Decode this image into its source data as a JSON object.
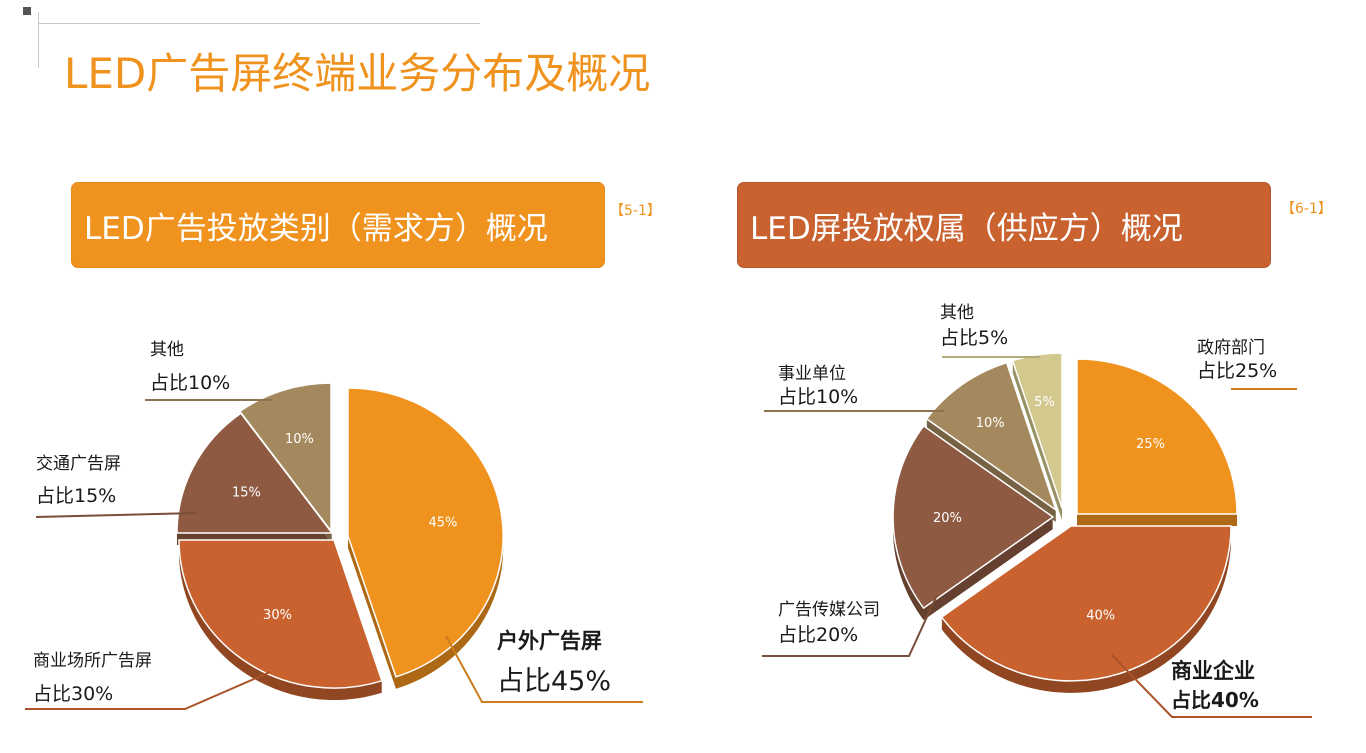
{
  "page": {
    "title": "LED广告屏终端业务分布及概况",
    "left_heading": "LED广告投放类别（需求方）概况",
    "left_ref": "【5-1】",
    "right_heading": "LED屏投放权属（供应方）概况",
    "right_ref": "【6-1】"
  },
  "chart_data": [
    {
      "type": "pie",
      "title": "LED广告投放类别（需求方）概况",
      "slices": [
        {
          "name": "户外广告屏",
          "value": 45,
          "pct_label": "45%",
          "callout_name": "户外广告屏",
          "callout_value": "占比45%",
          "color": "#f0921e",
          "emphasis": true
        },
        {
          "name": "商业场所广告屏",
          "value": 30,
          "pct_label": "30%",
          "callout_name": "商业场所广告屏",
          "callout_value": "占比30%",
          "color": "#c9622f",
          "emphasis": false
        },
        {
          "name": "交通广告屏",
          "value": 15,
          "pct_label": "15%",
          "callout_name": "交通广告屏",
          "callout_value": "占比15%",
          "color": "#8e5a42",
          "emphasis": false
        },
        {
          "name": "其他",
          "value": 10,
          "pct_label": "10%",
          "callout_name": "其他",
          "callout_value": "占比10%",
          "color": "#a5895e",
          "emphasis": false
        }
      ]
    },
    {
      "type": "pie",
      "title": "LED屏投放权属（供应方）概况",
      "slices": [
        {
          "name": "政府部门",
          "value": 25,
          "pct_label": "25%",
          "callout_name": "政府部门",
          "callout_value": "占比25%",
          "color": "#f0921e",
          "emphasis": false
        },
        {
          "name": "商业企业",
          "value": 40,
          "pct_label": "40%",
          "callout_name": "商业企业",
          "callout_value": "占比40%",
          "color": "#c9622f",
          "emphasis": true
        },
        {
          "name": "广告传媒公司",
          "value": 20,
          "pct_label": "20%",
          "callout_name": "广告传媒公司",
          "callout_value": "占比20%",
          "color": "#8e5a42",
          "emphasis": false
        },
        {
          "name": "事业单位",
          "value": 10,
          "pct_label": "10%",
          "callout_name": "事业单位",
          "callout_value": "占比10%",
          "color": "#a5895e",
          "emphasis": false
        },
        {
          "name": "其他",
          "value": 5,
          "pct_label": "5%",
          "callout_name": "其他",
          "callout_value": "占比5%",
          "color": "#d3c98e",
          "emphasis": false
        }
      ]
    }
  ]
}
